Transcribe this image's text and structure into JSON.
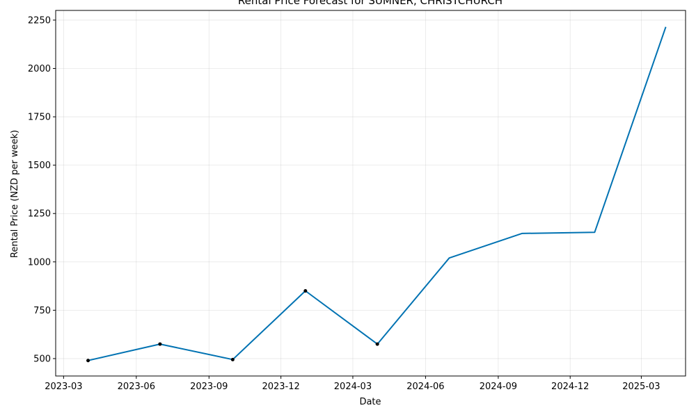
{
  "chart_data": {
    "type": "line",
    "title": "Rental Price Forecast for SUMNER, CHRISTCHURCH",
    "xlabel": "Date",
    "ylabel": "Rental Price (NZD per week)",
    "x_ticks": [
      "2023-03",
      "2023-06",
      "2023-09",
      "2023-12",
      "2024-03",
      "2024-06",
      "2024-09",
      "2024-12",
      "2025-03"
    ],
    "y_ticks": [
      500,
      750,
      1000,
      1250,
      1500,
      1750,
      2000,
      2250
    ],
    "xlim": [
      "2023-02-19",
      "2025-04-26"
    ],
    "ylim": [
      410,
      2300
    ],
    "grid": true,
    "series": [
      {
        "x": [
          "2023-04-01",
          "2023-07-01",
          "2023-10-01",
          "2024-01-01",
          "2024-04-01",
          "2024-07-01",
          "2024-10-01",
          "2025-01-01",
          "2025-04-01"
        ],
        "values": [
          490,
          575,
          495,
          850,
          575,
          1020,
          1147,
          1153,
          2215
        ],
        "color": "#0072B2"
      }
    ],
    "observed": {
      "x": [
        "2023-04-01",
        "2023-07-01",
        "2023-10-01",
        "2024-01-01",
        "2024-04-01"
      ],
      "values": [
        490,
        575,
        495,
        850,
        575
      ],
      "color": "#000000"
    }
  }
}
